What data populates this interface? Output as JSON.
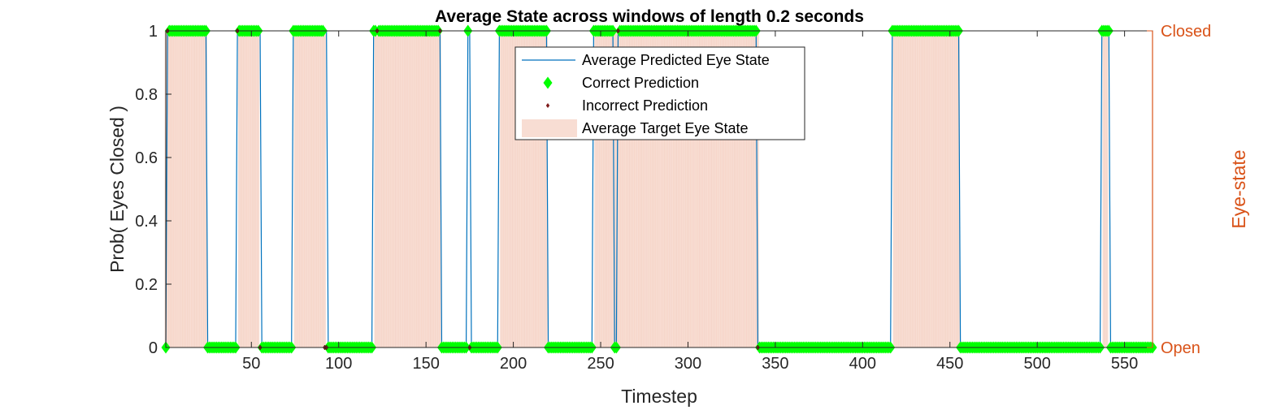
{
  "chart_data": {
    "type": "line",
    "title": "Average State across windows of length 0.2 seconds",
    "xlabel": "Timestep",
    "ylabel": "Prob( Eyes Closed )",
    "ylabel_right": "Eye-state",
    "xlim": [
      1,
      566
    ],
    "ylim": [
      0,
      1
    ],
    "xticks": [
      50,
      100,
      150,
      200,
      250,
      300,
      350,
      400,
      450,
      500,
      550
    ],
    "yticks": [
      0,
      0.2,
      0.4,
      0.6,
      0.8,
      1
    ],
    "ytick_labels": [
      "0",
      "0.2",
      "0.4",
      "0.6",
      "0.8",
      "1"
    ],
    "right_ticks": [
      {
        "value": 0,
        "label": "Open"
      },
      {
        "value": 1,
        "label": "Closed"
      }
    ],
    "grid": false,
    "legend_position": "top-center",
    "colors": {
      "predicted": "#0072BD",
      "correct": "#00FF00",
      "incorrect": "#7E1A1A",
      "target_fill": "#F8DDD3",
      "right_axis": "#D95319"
    },
    "legend": [
      {
        "label": "Average Predicted Eye State",
        "kind": "line"
      },
      {
        "label": "Correct Prediction",
        "kind": "diamond"
      },
      {
        "label": "Incorrect Prediction",
        "kind": "dot"
      },
      {
        "label": "Average Target Eye State",
        "kind": "patch"
      }
    ],
    "target_closed_intervals": [
      [
        1,
        24
      ],
      [
        43,
        54
      ],
      [
        75,
        92
      ],
      [
        121,
        158
      ],
      [
        193,
        219
      ],
      [
        247,
        340
      ],
      [
        418,
        455
      ],
      [
        538,
        540
      ]
    ],
    "predicted_closed_intervals": [
      [
        2,
        24
      ],
      [
        42,
        55
      ],
      [
        74,
        93
      ],
      [
        120,
        158
      ],
      [
        174,
        175
      ],
      [
        192,
        219
      ],
      [
        246,
        257
      ],
      [
        260,
        339
      ],
      [
        417,
        455
      ],
      [
        537,
        541
      ]
    ],
    "incorrect_points": [
      {
        "x": 2,
        "y": 1
      },
      {
        "x": 42,
        "y": 1
      },
      {
        "x": 55,
        "y": 0
      },
      {
        "x": 92,
        "y": 0
      },
      {
        "x": 93,
        "y": 0
      },
      {
        "x": 122,
        "y": 1
      },
      {
        "x": 158,
        "y": 1
      },
      {
        "x": 175,
        "y": 0
      },
      {
        "x": 260,
        "y": 1
      },
      {
        "x": 340,
        "y": 0
      }
    ],
    "n_timesteps": 566
  }
}
